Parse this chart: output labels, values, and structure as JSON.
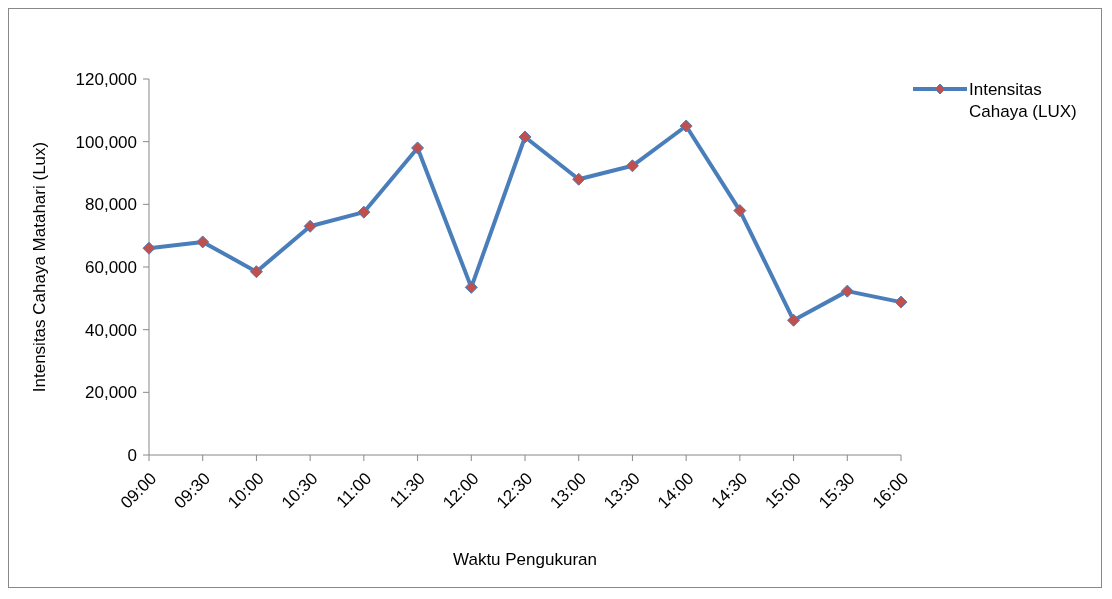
{
  "chart_data": {
    "type": "line",
    "xlabel": "Waktu Pengukuran",
    "ylabel": "Intensitas Cahaya Matahari (Lux)",
    "categories": [
      "09:00",
      "09:30",
      "10:00",
      "10:30",
      "11:00",
      "11:30",
      "12:00",
      "12:30",
      "13:00",
      "13:30",
      "14:00",
      "14:30",
      "15:00",
      "15:30",
      "16:00"
    ],
    "series": [
      {
        "name": "Intensitas Cahaya (LUX)",
        "color": "#4a7ebb",
        "values": [
          66000,
          68000,
          58500,
          73000,
          77500,
          98000,
          53500,
          101500,
          88000,
          92300,
          105000,
          78000,
          43000,
          52300,
          48800
        ]
      }
    ],
    "ylim": [
      0,
      120000
    ],
    "yticks": [
      {
        "value": 0,
        "label": "0"
      },
      {
        "value": 20000,
        "label": "20,000"
      },
      {
        "value": 40000,
        "label": "40,000"
      },
      {
        "value": 60000,
        "label": "60,000"
      },
      {
        "value": 80000,
        "label": "80,000"
      },
      {
        "value": 100000,
        "label": "100,000"
      },
      {
        "value": 120000,
        "label": "120,000"
      }
    ],
    "grid": false,
    "legend": "top right",
    "marker": "diamond",
    "line_style": "solid"
  }
}
